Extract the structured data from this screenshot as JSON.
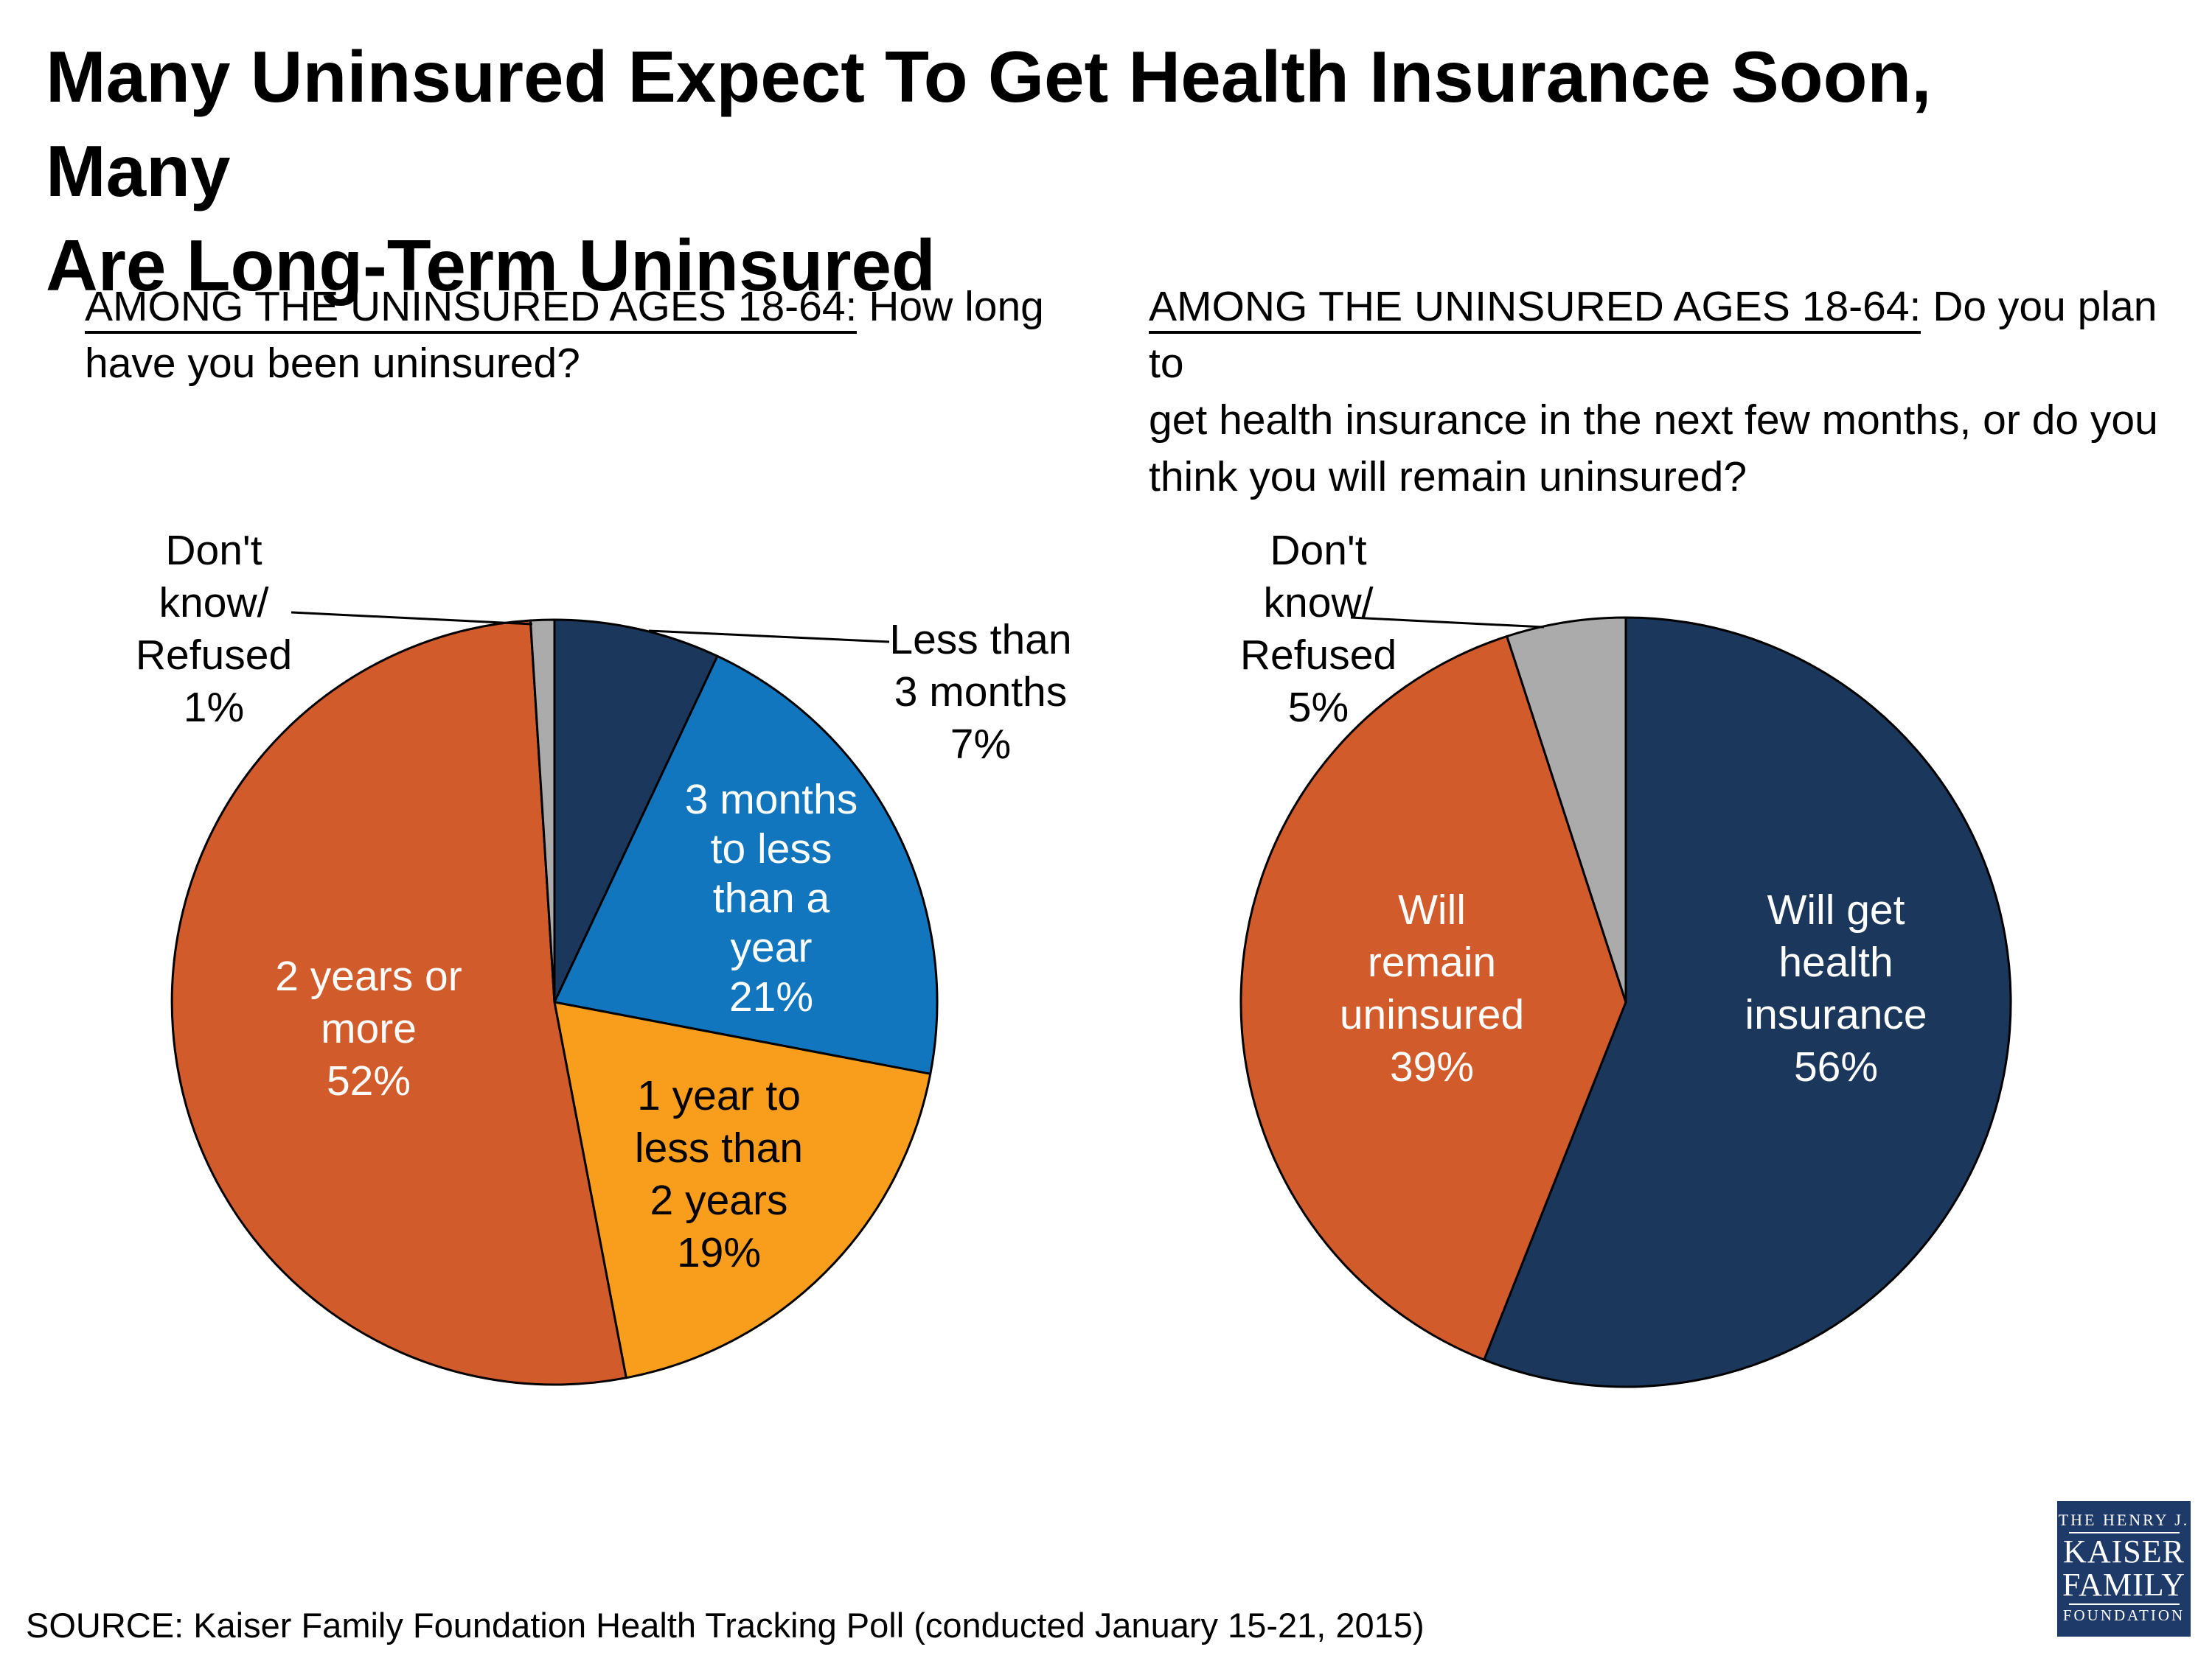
{
  "title": "Many Uninsured Expect To Get Health Insurance Soon, Many\nAre Long-Term Uninsured",
  "charts": [
    {
      "question_prefix": "AMONG THE UNINSURED AGES 18-64:",
      "question_rest": " How long\nhave you been uninsured?"
    },
    {
      "question_prefix": "AMONG THE UNINSURED AGES 18-64:",
      "question_rest": " Do you plan to\nget health insurance in the next few months, or do you\nthink you will remain uninsured?"
    }
  ],
  "chart_data": [
    {
      "type": "pie",
      "title": "AMONG THE UNINSURED AGES 18-64: How long have you been uninsured?",
      "categories": [
        "Less than 3 months",
        "3 months to less than a year",
        "1 year to less than 2 years",
        "2 years or more",
        "Don't know/Refused"
      ],
      "values": [
        7,
        21,
        19,
        52,
        1
      ],
      "colors": [
        "#1B385C",
        "#1176BD",
        "#F99D1C",
        "#D25B2B",
        "#ABABAB"
      ],
      "start_angle_deg": 0,
      "direction": "clockwise",
      "legend_position": "labels-on-and-around-pie"
    },
    {
      "type": "pie",
      "title": "AMONG THE UNINSURED AGES 18-64: Do you plan to get health insurance in the next few months, or do you think you will remain uninsured?",
      "categories": [
        "Will get health insurance",
        "Will remain uninsured",
        "Don't know/Refused"
      ],
      "values": [
        56,
        39,
        5
      ],
      "colors": [
        "#1B385C",
        "#D25B2B",
        "#ABABAB"
      ],
      "start_angle_deg": 0,
      "direction": "clockwise",
      "legend_position": "labels-on-and-around-pie"
    }
  ],
  "pie_labels": {
    "left_dk": "Don't\nknow/\nRefused\n1%",
    "left_less3": "Less than\n3 months\n7%",
    "left_3mo": "3 months\nto less\nthan a\nyear\n21%",
    "left_1yr": "1 year to\nless than\n2 years\n19%",
    "left_2yr": "2 years or\nmore\n52%",
    "right_dk": "Don't\nknow/\nRefused\n5%",
    "right_remain": "Will\nremain\nuninsured\n39%",
    "right_get": "Will get\nhealth\ninsurance\n56%"
  },
  "source": "SOURCE: Kaiser Family Foundation Health Tracking Poll (conducted January 15-21, 2015)",
  "logo": {
    "line1": "THE HENRY J.",
    "line2": "KAISER",
    "line3": "FAMILY",
    "line4": "FOUNDATION",
    "background_color": "#1E3A69"
  },
  "slice_outline_color": "#000000"
}
